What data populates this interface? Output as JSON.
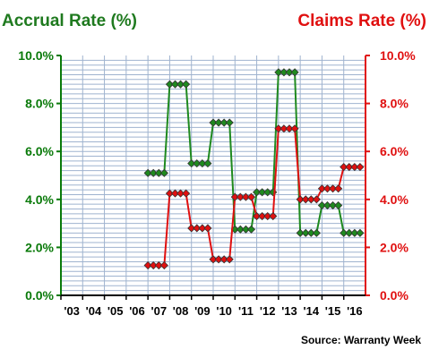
{
  "chart_data": {
    "type": "line",
    "left_title": "Accrual Rate (%)",
    "right_title": "Claims Rate (%)",
    "source": "Source: Warranty Week",
    "x_tick_labels": [
      "'03",
      "'04",
      "'05",
      "'06",
      "'07",
      "'08",
      "'09",
      "'10",
      "'11",
      "'12",
      "'13",
      "'14",
      "'15",
      "'16"
    ],
    "y_left_ticks": [
      "0.0%",
      "2.0%",
      "4.0%",
      "6.0%",
      "8.0%",
      "10.0%"
    ],
    "y_right_ticks": [
      "0.0%",
      "2.0%",
      "4.0%",
      "6.0%",
      "8.0%",
      "10.0%"
    ],
    "ylim": [
      0,
      10
    ],
    "grid": true,
    "series": [
      {
        "axis": "left",
        "color": "#1f8a1f",
        "points": [
          {
            "x": 2007.0,
            "y": 5.1
          },
          {
            "x": 2007.25,
            "y": 5.1
          },
          {
            "x": 2007.5,
            "y": 5.1
          },
          {
            "x": 2007.75,
            "y": 5.1
          },
          {
            "x": 2008.0,
            "y": 8.8
          },
          {
            "x": 2008.25,
            "y": 8.8
          },
          {
            "x": 2008.5,
            "y": 8.8
          },
          {
            "x": 2008.75,
            "y": 8.8
          },
          {
            "x": 2009.0,
            "y": 5.5
          },
          {
            "x": 2009.25,
            "y": 5.5
          },
          {
            "x": 2009.5,
            "y": 5.5
          },
          {
            "x": 2009.75,
            "y": 5.5
          },
          {
            "x": 2010.0,
            "y": 7.2
          },
          {
            "x": 2010.25,
            "y": 7.2
          },
          {
            "x": 2010.5,
            "y": 7.2
          },
          {
            "x": 2010.75,
            "y": 7.2
          },
          {
            "x": 2011.0,
            "y": 2.75
          },
          {
            "x": 2011.25,
            "y": 2.75
          },
          {
            "x": 2011.5,
            "y": 2.75
          },
          {
            "x": 2011.75,
            "y": 2.75
          },
          {
            "x": 2012.0,
            "y": 4.3
          },
          {
            "x": 2012.25,
            "y": 4.3
          },
          {
            "x": 2012.5,
            "y": 4.3
          },
          {
            "x": 2012.75,
            "y": 4.3
          },
          {
            "x": 2013.0,
            "y": 9.3
          },
          {
            "x": 2013.25,
            "y": 9.3
          },
          {
            "x": 2013.5,
            "y": 9.3
          },
          {
            "x": 2013.75,
            "y": 9.3
          },
          {
            "x": 2014.0,
            "y": 2.6
          },
          {
            "x": 2014.25,
            "y": 2.6
          },
          {
            "x": 2014.5,
            "y": 2.6
          },
          {
            "x": 2014.75,
            "y": 2.6
          },
          {
            "x": 2015.0,
            "y": 3.75
          },
          {
            "x": 2015.25,
            "y": 3.75
          },
          {
            "x": 2015.5,
            "y": 3.75
          },
          {
            "x": 2015.75,
            "y": 3.75
          },
          {
            "x": 2016.0,
            "y": 2.6
          },
          {
            "x": 2016.25,
            "y": 2.6
          },
          {
            "x": 2016.5,
            "y": 2.6
          },
          {
            "x": 2016.75,
            "y": 2.6
          }
        ]
      },
      {
        "axis": "right",
        "color": "#e01010",
        "points": [
          {
            "x": 2007.0,
            "y": 1.25
          },
          {
            "x": 2007.25,
            "y": 1.25
          },
          {
            "x": 2007.5,
            "y": 1.25
          },
          {
            "x": 2007.75,
            "y": 1.25
          },
          {
            "x": 2008.0,
            "y": 4.25
          },
          {
            "x": 2008.25,
            "y": 4.25
          },
          {
            "x": 2008.5,
            "y": 4.25
          },
          {
            "x": 2008.75,
            "y": 4.25
          },
          {
            "x": 2009.0,
            "y": 2.8
          },
          {
            "x": 2009.25,
            "y": 2.8
          },
          {
            "x": 2009.5,
            "y": 2.8
          },
          {
            "x": 2009.75,
            "y": 2.8
          },
          {
            "x": 2010.0,
            "y": 1.5
          },
          {
            "x": 2010.25,
            "y": 1.5
          },
          {
            "x": 2010.5,
            "y": 1.5
          },
          {
            "x": 2010.75,
            "y": 1.5
          },
          {
            "x": 2011.0,
            "y": 4.1
          },
          {
            "x": 2011.25,
            "y": 4.1
          },
          {
            "x": 2011.5,
            "y": 4.1
          },
          {
            "x": 2011.75,
            "y": 4.1
          },
          {
            "x": 2012.0,
            "y": 3.3
          },
          {
            "x": 2012.25,
            "y": 3.3
          },
          {
            "x": 2012.5,
            "y": 3.3
          },
          {
            "x": 2012.75,
            "y": 3.3
          },
          {
            "x": 2013.0,
            "y": 6.95
          },
          {
            "x": 2013.25,
            "y": 6.95
          },
          {
            "x": 2013.5,
            "y": 6.95
          },
          {
            "x": 2013.75,
            "y": 6.95
          },
          {
            "x": 2014.0,
            "y": 4.0
          },
          {
            "x": 2014.25,
            "y": 4.0
          },
          {
            "x": 2014.5,
            "y": 4.0
          },
          {
            "x": 2014.75,
            "y": 4.0
          },
          {
            "x": 2015.0,
            "y": 4.45
          },
          {
            "x": 2015.25,
            "y": 4.45
          },
          {
            "x": 2015.5,
            "y": 4.45
          },
          {
            "x": 2015.75,
            "y": 4.45
          },
          {
            "x": 2016.0,
            "y": 5.35
          },
          {
            "x": 2016.25,
            "y": 5.35
          },
          {
            "x": 2016.5,
            "y": 5.35
          },
          {
            "x": 2016.75,
            "y": 5.35
          }
        ]
      }
    ]
  }
}
